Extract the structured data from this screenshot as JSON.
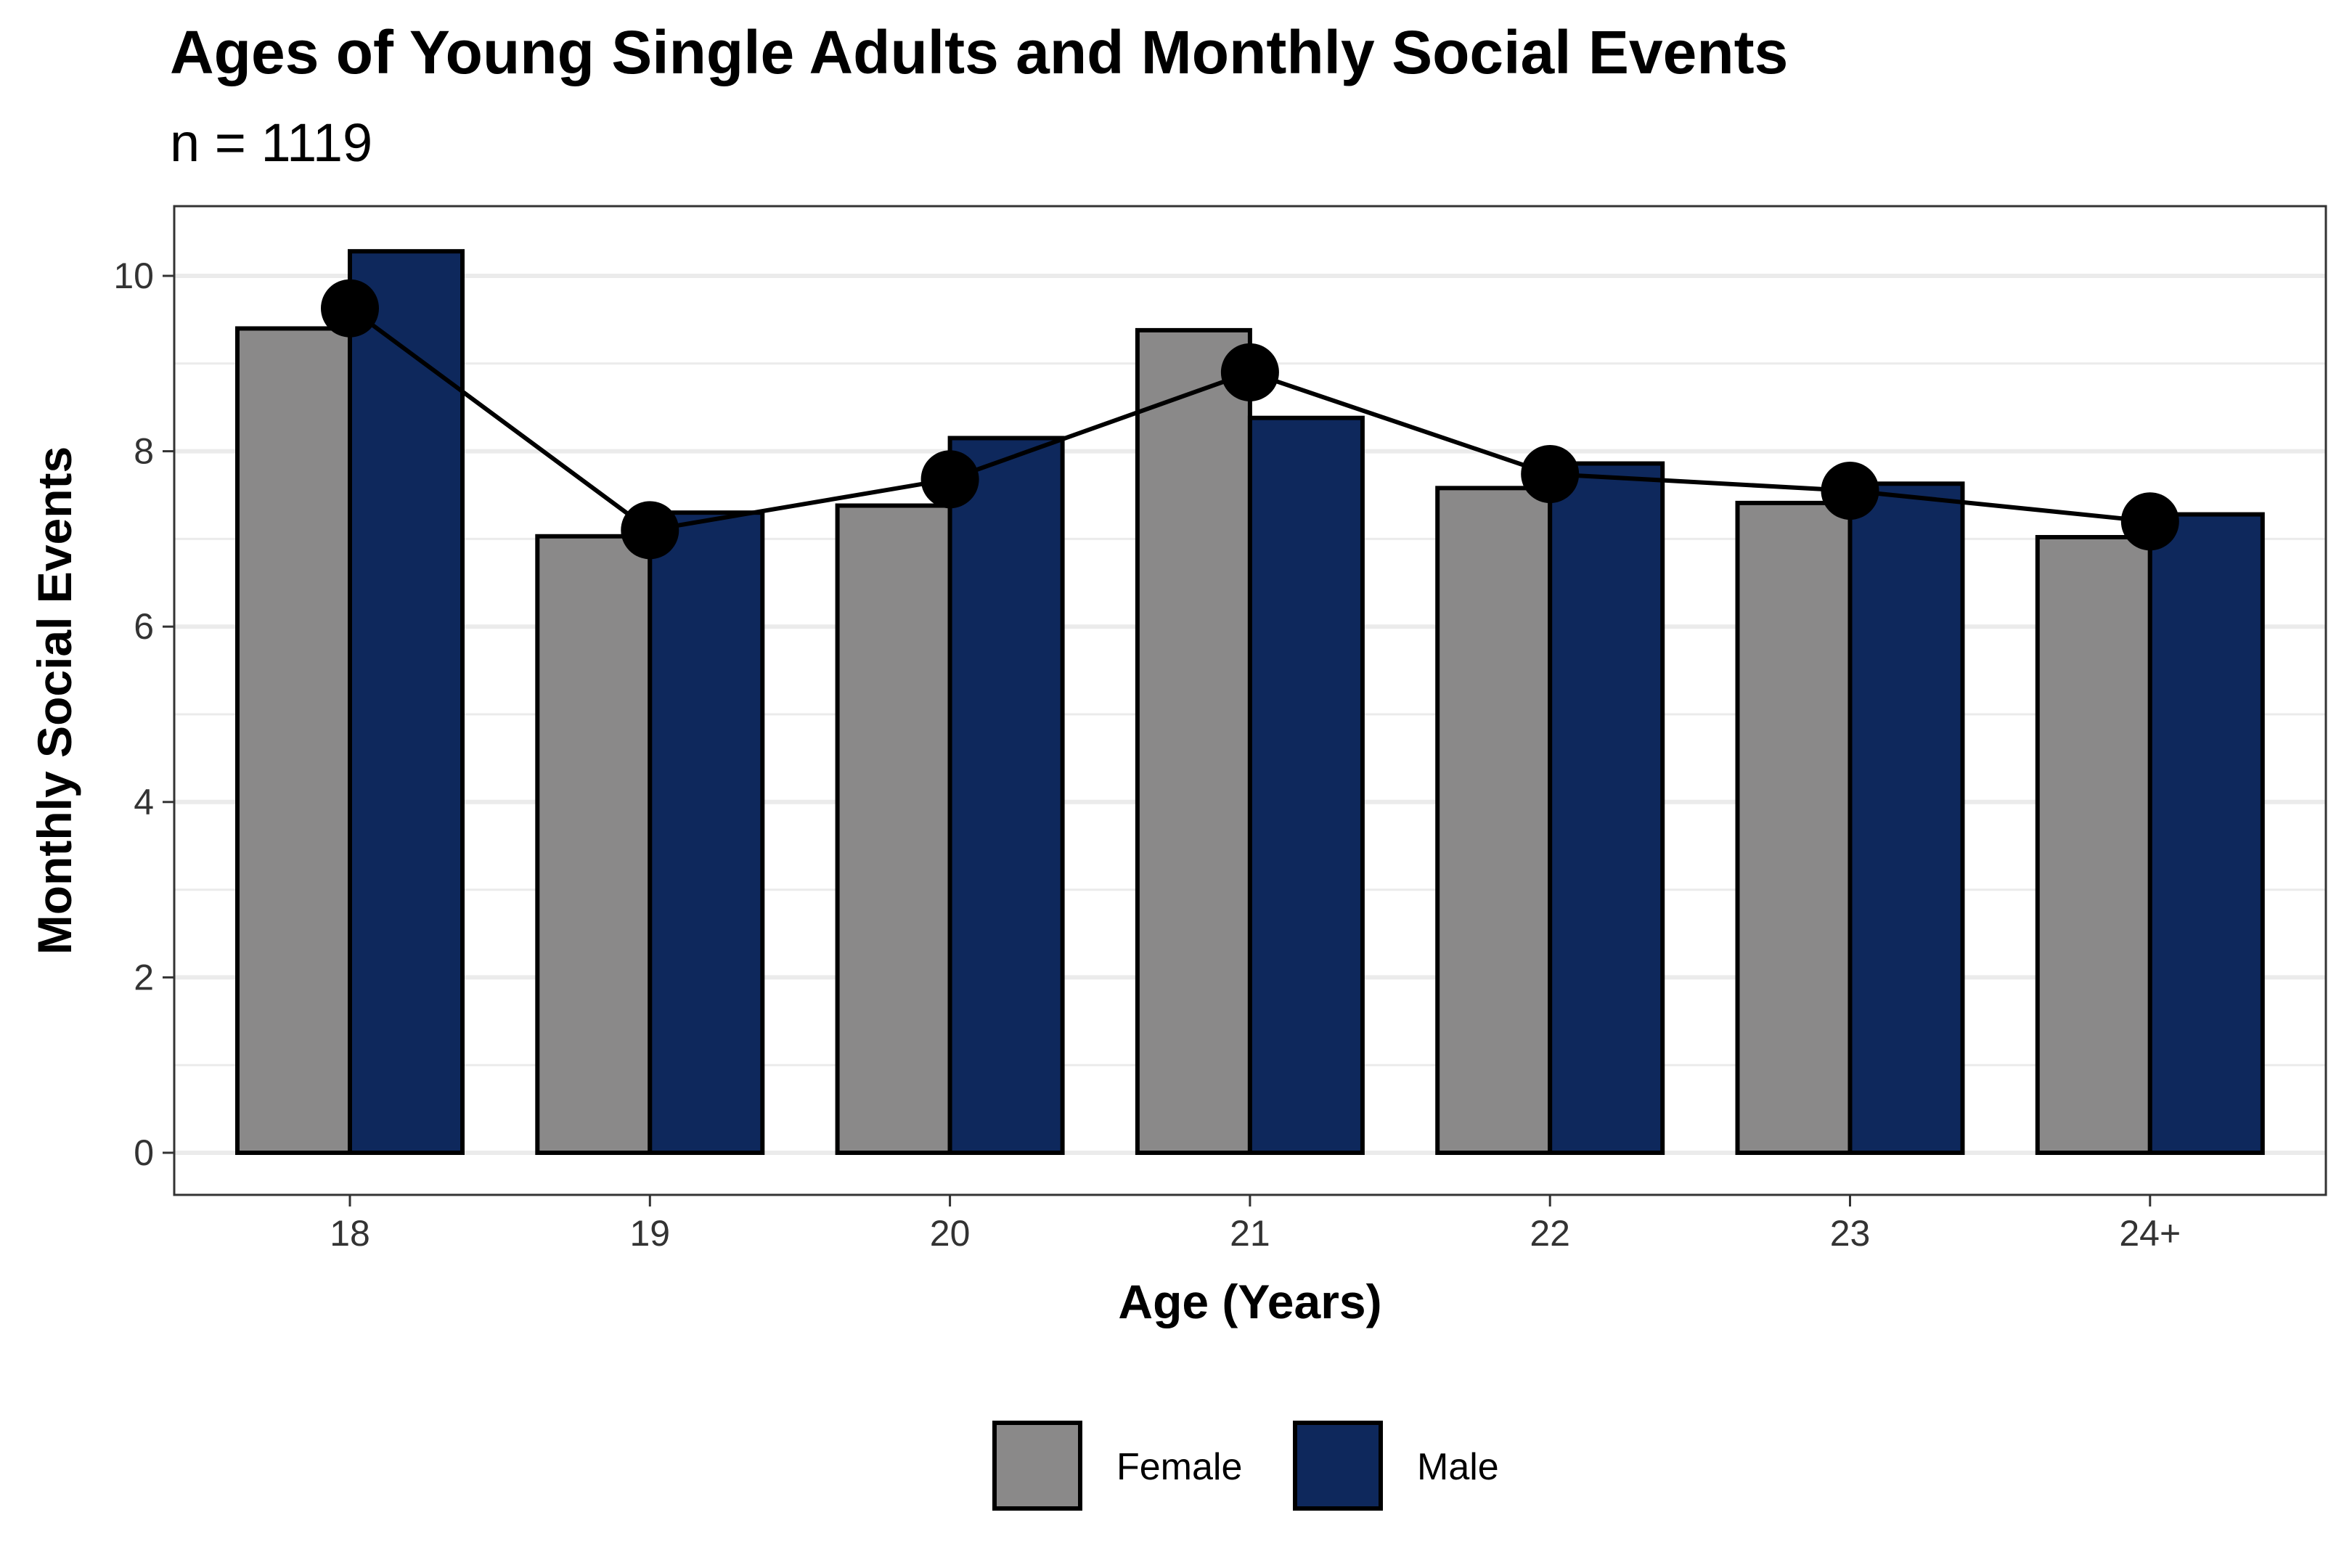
{
  "chart_data": {
    "type": "bar",
    "title": "Ages of Young Single Adults and Monthly Social Events",
    "subtitle": "n = 1119",
    "xlabel": "Age (Years)",
    "ylabel": "Monthly Social Events",
    "categories": [
      "18",
      "19",
      "20",
      "21",
      "22",
      "23",
      "24+"
    ],
    "series": [
      {
        "name": "Female",
        "color": "#8a8989",
        "values": [
          9.4,
          7.03,
          7.38,
          9.38,
          7.58,
          7.41,
          7.02
        ]
      },
      {
        "name": "Male",
        "color": "#0e285c",
        "values": [
          10.28,
          7.3,
          8.15,
          8.38,
          7.86,
          7.63,
          7.28
        ]
      }
    ],
    "overlay_line": {
      "type": "line",
      "color": "#000000",
      "values": [
        9.63,
        7.1,
        7.68,
        8.9,
        7.74,
        7.55,
        7.2
      ]
    },
    "ylim": [
      0,
      10.8
    ],
    "yticks": [
      0,
      2,
      4,
      6,
      8,
      10
    ],
    "grid": true,
    "legend_position": "bottom"
  }
}
